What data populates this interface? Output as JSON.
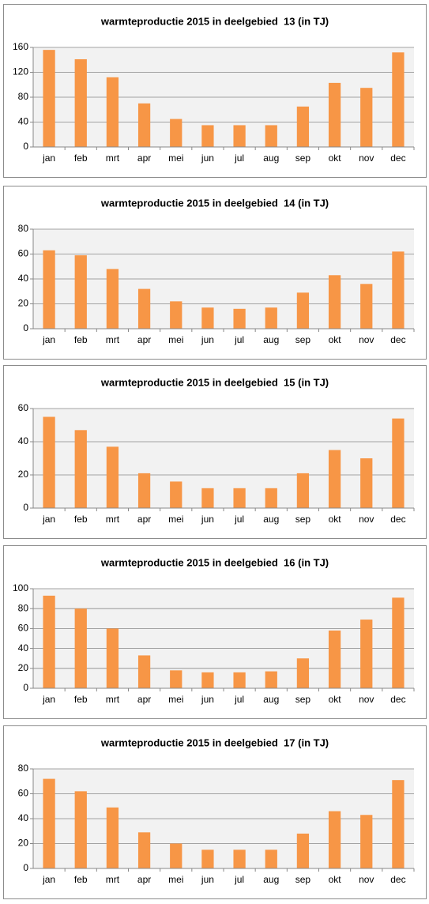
{
  "chart_data": [
    {
      "type": "bar",
      "title": "warmteproductie 2015 in deelgebied  13 (in TJ)",
      "categories": [
        "jan",
        "feb",
        "mrt",
        "apr",
        "mei",
        "jun",
        "jul",
        "aug",
        "sep",
        "okt",
        "nov",
        "dec"
      ],
      "values": [
        156,
        141,
        112,
        70,
        45,
        35,
        35,
        35,
        65,
        103,
        95,
        152
      ],
      "color": "#f79646",
      "ylim": [
        0,
        160
      ],
      "yticks": [
        0,
        40,
        80,
        120,
        160
      ],
      "grid": true
    },
    {
      "type": "bar",
      "title": "warmteproductie 2015 in deelgebied  14 (in TJ)",
      "categories": [
        "jan",
        "feb",
        "mrt",
        "apr",
        "mei",
        "jun",
        "jul",
        "aug",
        "sep",
        "okt",
        "nov",
        "dec"
      ],
      "values": [
        63,
        59,
        48,
        32,
        22,
        17,
        16,
        17,
        29,
        43,
        36,
        62
      ],
      "color": "#f79646",
      "ylim": [
        0,
        80
      ],
      "yticks": [
        0,
        20,
        40,
        60,
        80
      ],
      "grid": true
    },
    {
      "type": "bar",
      "title": "warmteproductie 2015 in deelgebied  15 (in TJ)",
      "categories": [
        "jan",
        "feb",
        "mrt",
        "apr",
        "mei",
        "jun",
        "jul",
        "aug",
        "sep",
        "okt",
        "nov",
        "dec"
      ],
      "values": [
        55,
        47,
        37,
        21,
        16,
        12,
        12,
        12,
        21,
        35,
        30,
        54
      ],
      "color": "#f79646",
      "ylim": [
        0,
        60
      ],
      "yticks": [
        0,
        20,
        40,
        60
      ],
      "grid": true
    },
    {
      "type": "bar",
      "title": "warmteproductie 2015 in deelgebied  16 (in TJ)",
      "categories": [
        "jan",
        "feb",
        "mrt",
        "apr",
        "mei",
        "jun",
        "jul",
        "aug",
        "sep",
        "okt",
        "nov",
        "dec"
      ],
      "values": [
        93,
        80,
        60,
        33,
        18,
        16,
        16,
        17,
        30,
        58,
        69,
        91
      ],
      "color": "#f79646",
      "ylim": [
        0,
        100
      ],
      "yticks": [
        0,
        20,
        40,
        60,
        80,
        100
      ],
      "grid": true
    },
    {
      "type": "bar",
      "title": "warmteproductie 2015 in deelgebied  17 (in TJ)",
      "categories": [
        "jan",
        "feb",
        "mrt",
        "apr",
        "mei",
        "jun",
        "jul",
        "aug",
        "sep",
        "okt",
        "nov",
        "dec"
      ],
      "values": [
        72,
        62,
        49,
        29,
        20,
        15,
        15,
        15,
        28,
        46,
        43,
        71
      ],
      "color": "#f79646",
      "ylim": [
        0,
        80
      ],
      "yticks": [
        0,
        20,
        40,
        60,
        80
      ],
      "grid": true
    }
  ]
}
